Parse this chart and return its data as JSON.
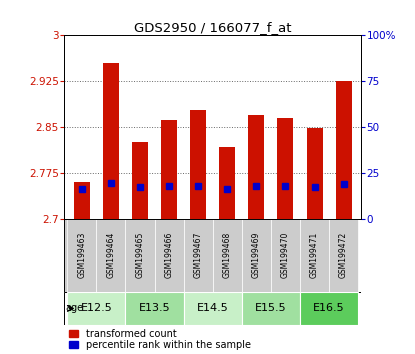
{
  "title": "GDS2950 / 166077_f_at",
  "samples": [
    "GSM199463",
    "GSM199464",
    "GSM199465",
    "GSM199466",
    "GSM199467",
    "GSM199468",
    "GSM199469",
    "GSM199470",
    "GSM199471",
    "GSM199472"
  ],
  "red_values": [
    2.76,
    2.955,
    2.825,
    2.862,
    2.878,
    2.818,
    2.87,
    2.865,
    2.848,
    2.925
  ],
  "blue_values": [
    2.748,
    2.758,
    2.752,
    2.754,
    2.754,
    2.748,
    2.753,
    2.753,
    2.752,
    2.757
  ],
  "y_min": 2.7,
  "y_max": 3.0,
  "y_ticks": [
    2.7,
    2.775,
    2.85,
    2.925,
    3.0
  ],
  "y_tick_labels": [
    "2.7",
    "2.775",
    "2.85",
    "2.925",
    "3"
  ],
  "right_y_ticks": [
    0,
    25,
    50,
    75,
    100
  ],
  "right_y_tick_labels": [
    "0",
    "25",
    "50",
    "75",
    "100%"
  ],
  "age_groups": [
    {
      "label": "E12.5",
      "indices": [
        0,
        1
      ],
      "color": "#c8f0c8"
    },
    {
      "label": "E13.5",
      "indices": [
        2,
        3
      ],
      "color": "#a0e0a0"
    },
    {
      "label": "E14.5",
      "indices": [
        4,
        5
      ],
      "color": "#c8f0c8"
    },
    {
      "label": "E15.5",
      "indices": [
        6,
        7
      ],
      "color": "#a0e0a0"
    },
    {
      "label": "E16.5",
      "indices": [
        8,
        9
      ],
      "color": "#5ccc5c"
    }
  ],
  "bar_color": "#cc1100",
  "blue_color": "#0000cc",
  "bar_width": 0.55,
  "background_color": "#ffffff",
  "plot_bg_color": "#ffffff",
  "label_color_left": "#cc1100",
  "label_color_right": "#0000cc",
  "legend_red": "transformed count",
  "legend_blue": "percentile rank within the sample",
  "age_label": "age"
}
